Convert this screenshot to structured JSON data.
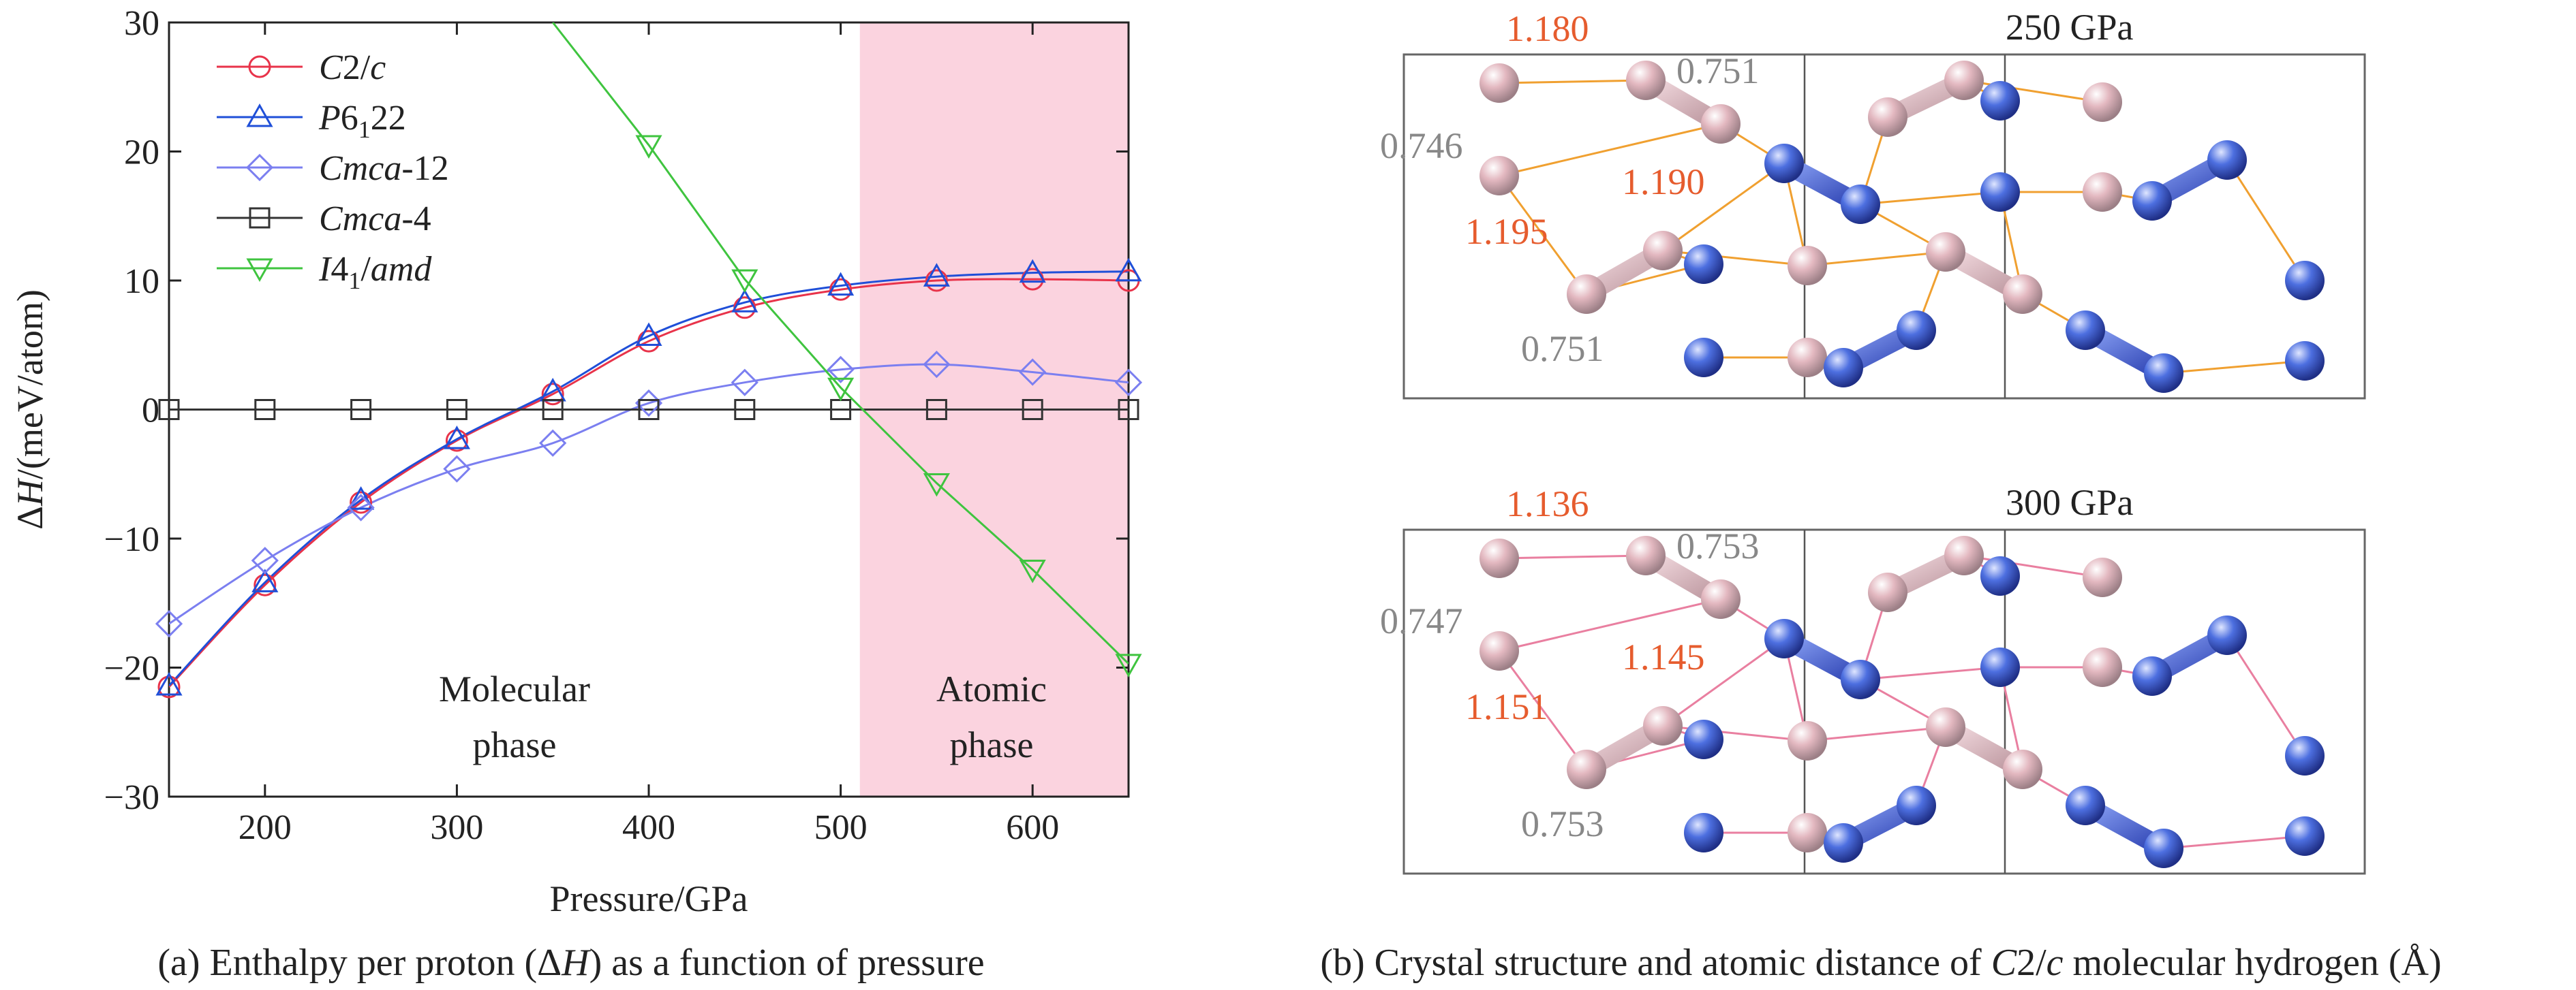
{
  "chart_data": {
    "type": "line",
    "ylabel_parts": [
      "Δ",
      "H",
      "/(meV/atom)"
    ],
    "xlabel": "Pressure/GPa",
    "xlim": [
      150,
      650
    ],
    "ylim": [
      -30,
      30
    ],
    "xticks": [
      200,
      300,
      400,
      500,
      600
    ],
    "yticks": [
      30,
      20,
      10,
      0,
      -10,
      -20,
      -30
    ],
    "tick_labels_x": [
      "200",
      "300",
      "400",
      "500",
      "600"
    ],
    "tick_labels_y": [
      "30",
      "20",
      "10",
      "0",
      "−10",
      "−20",
      "−30"
    ],
    "shaded_region": {
      "x": [
        510,
        650
      ],
      "color": "#fbd3df"
    },
    "legend_position": "top-left",
    "series": [
      {
        "key": "c2c",
        "marker": "circle",
        "color": "#e8334a",
        "label_parts": [
          {
            "t": "C",
            "i": true
          },
          {
            "t": "2/",
            "i": false
          },
          {
            "t": "c",
            "i": true
          }
        ],
        "x": [
          150,
          200,
          250,
          300,
          350,
          400,
          450,
          500,
          550,
          600,
          650
        ],
        "y": [
          -21.5,
          -13.6,
          -7.2,
          -2.4,
          1.2,
          5.3,
          7.9,
          9.3,
          10.0,
          10.1,
          10.0
        ]
      },
      {
        "key": "p6122",
        "marker": "triangle-up",
        "color": "#1f4fd8",
        "label_parts": [
          {
            "t": "P",
            "i": true
          },
          {
            "t": "6",
            "i": false
          },
          {
            "t": "1",
            "i": false,
            "sub": true
          },
          {
            "t": "22",
            "i": false
          }
        ],
        "x": [
          150,
          200,
          250,
          300,
          350,
          400,
          450,
          500,
          550,
          600,
          650
        ],
        "y": [
          -21.4,
          -13.4,
          -7.0,
          -2.3,
          1.4,
          5.7,
          8.3,
          9.6,
          10.3,
          10.6,
          10.7
        ]
      },
      {
        "key": "cmca12",
        "marker": "diamond",
        "color": "#7b7ff0",
        "label_parts": [
          {
            "t": "Cmca",
            "i": true
          },
          {
            "t": "-12",
            "i": false
          }
        ],
        "x": [
          150,
          200,
          250,
          300,
          350,
          400,
          450,
          500,
          550,
          600,
          650
        ],
        "y": [
          -16.6,
          -11.7,
          -7.6,
          -4.6,
          -2.6,
          0.5,
          2.1,
          3.1,
          3.5,
          2.9,
          2.1
        ]
      },
      {
        "key": "cmca4",
        "marker": "square",
        "color": "#333333",
        "label_parts": [
          {
            "t": "Cmca",
            "i": true
          },
          {
            "t": "-4",
            "i": false
          }
        ],
        "x": [
          150,
          200,
          250,
          300,
          350,
          400,
          450,
          500,
          550,
          600,
          650
        ],
        "y": [
          0,
          0,
          0,
          0,
          0,
          0,
          0,
          0,
          0,
          0,
          0
        ]
      },
      {
        "key": "i41amd",
        "marker": "triangle-down",
        "color": "#3fc43f",
        "label_parts": [
          {
            "t": "I",
            "i": true
          },
          {
            "t": "4",
            "i": false
          },
          {
            "t": "1",
            "i": false,
            "sub": true
          },
          {
            "t": "/",
            "i": false
          },
          {
            "t": "amd",
            "i": true
          }
        ],
        "x": [
          350,
          400,
          450,
          500,
          550,
          600,
          650
        ],
        "y": [
          30.0,
          20.5,
          10.1,
          1.7,
          -5.7,
          -12.4,
          -19.7
        ],
        "marker_x": [
          400,
          450,
          500,
          550,
          600,
          650
        ]
      }
    ]
  },
  "annotations": {
    "molecular": [
      "Molecular",
      "phase"
    ],
    "atomic": [
      "Atomic",
      "phase"
    ]
  },
  "captions": {
    "a_parts": [
      {
        "t": "(a) Enthalpy per proton (Δ",
        "i": false
      },
      {
        "t": "H",
        "i": true
      },
      {
        "t": ") as a function of pressure",
        "i": false
      }
    ],
    "b_parts": [
      {
        "t": "(b) Crystal structure and atomic distance of ",
        "i": false
      },
      {
        "t": "C",
        "i": true
      },
      {
        "t": "2/",
        "i": false
      },
      {
        "t": "c",
        "i": true
      },
      {
        "t": " molecular hydrogen (Å)",
        "i": false
      }
    ]
  },
  "structures": [
    {
      "pressure_label": "250 GPa",
      "distances": [
        {
          "text": "1.180",
          "color": "#e65c2e"
        },
        {
          "text": "0.751",
          "color": "#888888"
        },
        {
          "text": "0.746",
          "color": "#888888"
        },
        {
          "text": "1.190",
          "color": "#e65c2e"
        },
        {
          "text": "1.195",
          "color": "#e65c2e"
        },
        {
          "text": "0.751",
          "color": "#888888"
        }
      ],
      "bond_line_color": "#f0a030"
    },
    {
      "pressure_label": "300 GPa",
      "distances": [
        {
          "text": "1.136",
          "color": "#e65c2e"
        },
        {
          "text": "0.753",
          "color": "#888888"
        },
        {
          "text": "0.747",
          "color": "#888888"
        },
        {
          "text": "1.145",
          "color": "#e65c2e"
        },
        {
          "text": "1.151",
          "color": "#e65c2e"
        },
        {
          "text": "0.753",
          "color": "#888888"
        }
      ],
      "bond_line_color": "#e97fa0"
    }
  ],
  "atom_colors": {
    "pink": "#e3b8c0",
    "blue": "#4d6fe0"
  }
}
